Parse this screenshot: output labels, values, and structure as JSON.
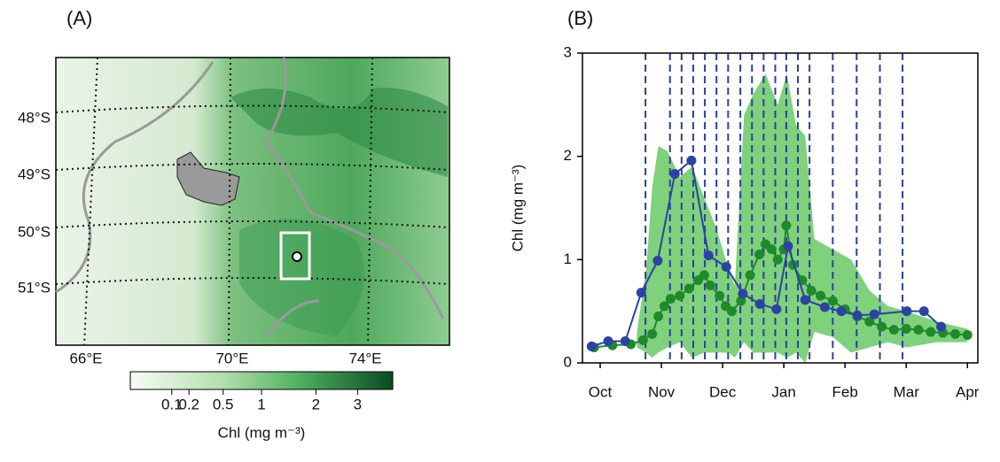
{
  "chart_data": [
    {
      "type": "map",
      "panel_label": "(A)",
      "lat_labels": [
        "48°S",
        "49°S",
        "50°S",
        "51°S"
      ],
      "lon_labels": [
        "66°E",
        "70°E",
        "74°E"
      ],
      "colorbar": {
        "label": "Chl (mg m⁻³)",
        "scale": "sqrt",
        "clim": [
          0,
          4
        ],
        "ticks": [
          0.1,
          0.2,
          0.5,
          1,
          2,
          3
        ]
      }
    },
    {
      "type": "line",
      "panel_label": "(B)",
      "ylabel": "Chl (mg m⁻³)",
      "xlim": [
        -0.29,
        6.17
      ],
      "xticks": [
        {
          "value": 0,
          "label": "Oct"
        },
        {
          "value": 1,
          "label": "Nov"
        },
        {
          "value": 2,
          "label": "Dec"
        },
        {
          "value": 3,
          "label": "Jan"
        },
        {
          "value": 4,
          "label": "Feb"
        },
        {
          "value": 5,
          "label": "Mar"
        },
        {
          "value": 6,
          "label": "Apr"
        }
      ],
      "ylim": [
        0,
        3
      ],
      "yticks": [
        0,
        1,
        2,
        3
      ],
      "vlines": {
        "color": "#2b3f9e",
        "x": [
          0.74,
          1.14,
          1.33,
          1.52,
          1.71,
          1.9,
          2.09,
          2.29,
          2.48,
          2.67,
          2.86,
          3.04,
          3.23,
          3.42,
          3.8,
          4.19,
          4.57,
          4.94
        ]
      },
      "band": {
        "color": "#7fd17c",
        "x": [
          0.6,
          0.75,
          0.85,
          0.95,
          1.1,
          1.3,
          1.5,
          1.7,
          1.9,
          2.1,
          2.2,
          2.35,
          2.5,
          2.7,
          2.9,
          3.05,
          3.2,
          3.35,
          3.5,
          3.8,
          4.1,
          4.4,
          4.7,
          5.0,
          5.5,
          6.0
        ],
        "lower": [
          0.15,
          0.1,
          0.05,
          0.1,
          0.15,
          0.2,
          0.05,
          0.1,
          0.1,
          0.1,
          0.05,
          0.2,
          0.1,
          0.1,
          0.1,
          0.05,
          0.1,
          0.0,
          0.3,
          0.25,
          0.1,
          0.15,
          0.2,
          0.15,
          0.2,
          0.2
        ],
        "upper": [
          0.3,
          0.9,
          1.7,
          2.1,
          2.05,
          1.8,
          1.9,
          1.6,
          1.3,
          0.9,
          0.75,
          2.4,
          2.6,
          2.8,
          2.5,
          2.8,
          2.3,
          2.2,
          1.2,
          1.1,
          1.0,
          0.7,
          0.55,
          0.5,
          0.4,
          0.33
        ]
      },
      "series": [
        {
          "color": "#1e8a2c",
          "x": [
            -0.1,
            0.2,
            0.5,
            0.7,
            0.85,
            0.95,
            1.05,
            1.15,
            1.3,
            1.45,
            1.6,
            1.7,
            1.8,
            1.95,
            2.05,
            2.15,
            2.3,
            2.45,
            2.6,
            2.7,
            2.8,
            2.9,
            3.0,
            3.04,
            3.15,
            3.3,
            3.45,
            3.6,
            3.8,
            4.0,
            4.2,
            4.4,
            4.6,
            4.8,
            5.0,
            5.2,
            5.4,
            5.6,
            5.8,
            6.0
          ],
          "values": [
            0.15,
            0.17,
            0.18,
            0.22,
            0.28,
            0.45,
            0.55,
            0.62,
            0.65,
            0.72,
            0.8,
            0.85,
            0.75,
            0.65,
            0.55,
            0.5,
            0.6,
            0.85,
            1.05,
            1.15,
            1.1,
            1.0,
            1.1,
            1.33,
            0.95,
            0.8,
            0.7,
            0.65,
            0.6,
            0.52,
            0.45,
            0.4,
            0.35,
            0.32,
            0.33,
            0.32,
            0.3,
            0.29,
            0.28,
            0.27
          ]
        },
        {
          "color": "#2d43a3",
          "x": [
            -0.14,
            0.13,
            0.41,
            0.67,
            0.94,
            1.22,
            1.49,
            1.77,
            2.06,
            2.33,
            2.61,
            2.88,
            3.07,
            3.35,
            3.67,
            3.94,
            4.2,
            4.48,
            5.01,
            5.29,
            5.57
          ],
          "values": [
            0.16,
            0.21,
            0.21,
            0.68,
            0.99,
            1.83,
            1.96,
            1.04,
            0.93,
            0.67,
            0.57,
            0.52,
            1.13,
            0.61,
            0.54,
            0.5,
            0.46,
            0.47,
            0.5,
            0.5,
            0.35
          ]
        }
      ]
    }
  ]
}
